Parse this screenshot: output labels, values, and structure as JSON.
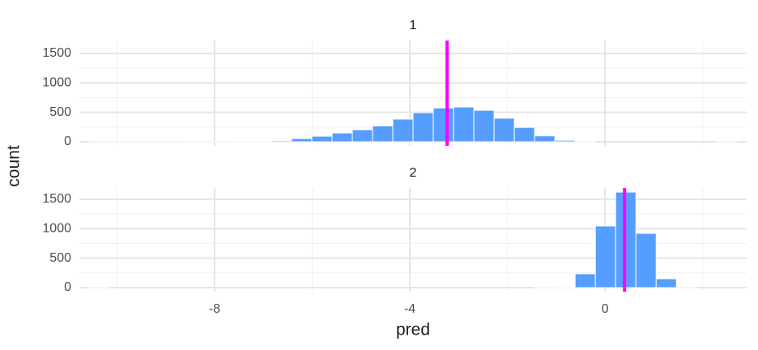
{
  "chart_data": {
    "type": "histogram",
    "xlabel": "pred",
    "ylabel": "count",
    "bins": [
      -10.574,
      -10.159,
      -9.744,
      -9.329,
      -8.914,
      -8.499,
      -8.084,
      -7.669,
      -7.254,
      -6.839,
      -6.424,
      -6.009,
      -5.594,
      -5.179,
      -4.764,
      -4.349,
      -3.934,
      -3.519,
      -3.104,
      -2.689,
      -2.274,
      -1.859,
      -1.444,
      -1.029,
      -0.614,
      -0.199,
      0.216,
      0.631,
      1.046,
      1.461,
      1.876,
      2.291,
      2.706
    ],
    "xlim": [
      -10.77,
      2.9
    ],
    "xticks": [
      -8,
      -4,
      0
    ],
    "xminor": [
      -10,
      -6,
      -2,
      2
    ],
    "color": "#559dff",
    "line_color": "#ff00ff",
    "panels": [
      {
        "title": "1",
        "vline": -3.237,
        "ylim": [
          -69,
          1720
        ],
        "yticks": [
          0,
          500,
          1000,
          1500
        ],
        "yminor": [
          250,
          750,
          1250
        ],
        "counts": [
          2,
          1,
          1,
          1,
          2,
          3,
          4,
          6,
          9,
          18,
          55,
          95,
          150,
          205,
          270,
          385,
          495,
          575,
          590,
          535,
          400,
          245,
          100,
          25,
          3,
          0,
          0,
          0,
          0,
          0,
          0,
          1
        ]
      },
      {
        "title": "2",
        "vline": 0.398,
        "ylim": [
          -69,
          1690
        ],
        "yticks": [
          0,
          500,
          1000,
          1500
        ],
        "yminor": [
          250,
          750,
          1250
        ],
        "counts": [
          2,
          0,
          0,
          0,
          0,
          0,
          0,
          0,
          0,
          0,
          0,
          0,
          0,
          0,
          0,
          0,
          0,
          0,
          0,
          0,
          0,
          0,
          3,
          10,
          235,
          1045,
          1620,
          920,
          150,
          2,
          0,
          0
        ]
      }
    ]
  }
}
